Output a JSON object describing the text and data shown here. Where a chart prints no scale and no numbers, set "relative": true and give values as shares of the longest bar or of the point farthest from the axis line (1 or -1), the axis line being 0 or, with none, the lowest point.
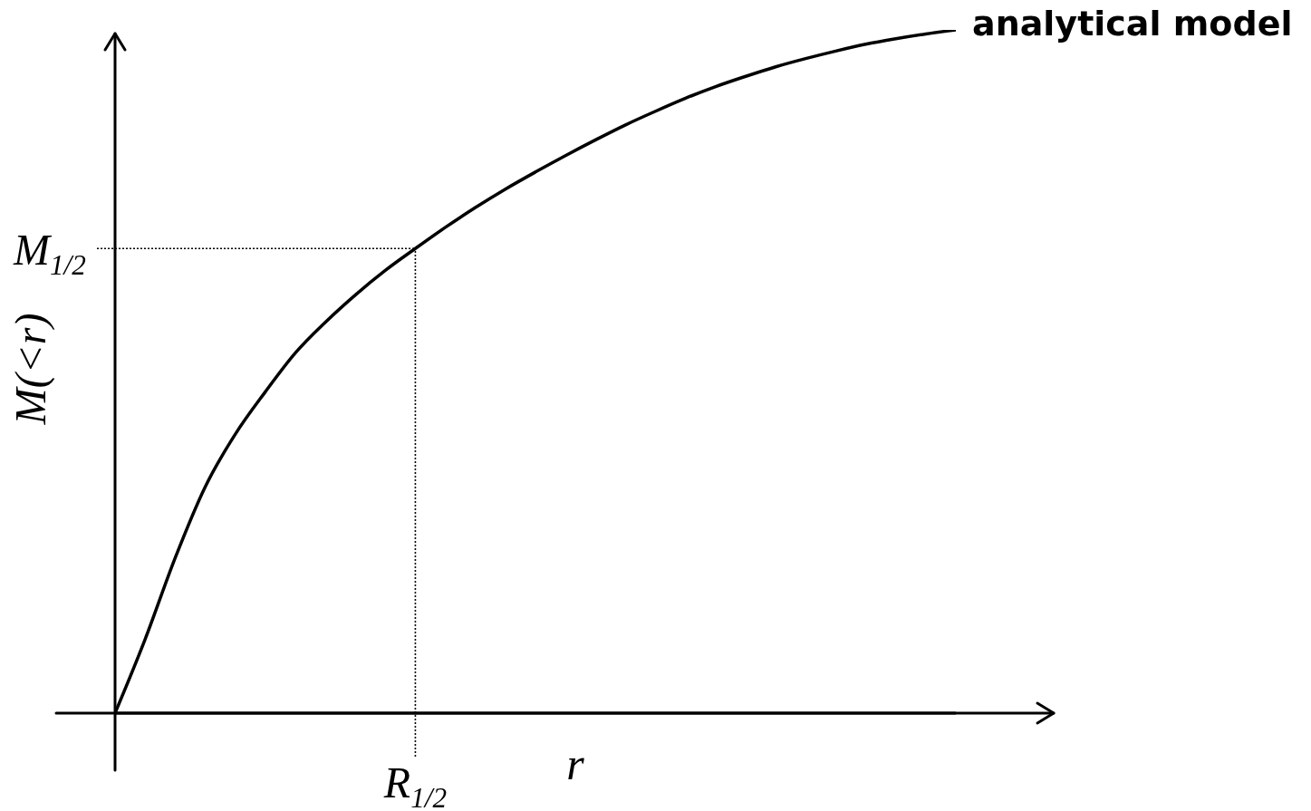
{
  "chart_data": {
    "type": "line",
    "xlabel": "r",
    "ylabel": "M(<r)",
    "relative": true,
    "marker": "none",
    "categories": [
      null,
      null,
      null,
      null,
      null,
      null,
      null,
      null,
      null,
      null,
      null,
      null,
      null,
      null,
      null,
      null,
      null,
      null,
      null,
      null,
      null,
      null,
      null,
      null,
      null,
      null,
      null,
      null,
      null
    ],
    "series": [
      {
        "name": "analytical model",
        "color": "#000000",
        "values": [
          0,
          0.108,
          0.227,
          0.331,
          0.408,
          0.47,
          0.527,
          0.572,
          0.612,
          0.648,
          0.68,
          0.711,
          0.74,
          0.767,
          0.792,
          0.816,
          0.839,
          0.861,
          0.881,
          0.9,
          0.917,
          0.932,
          0.946,
          0.958,
          0.969,
          0.979,
          0.987,
          0.994,
          1
        ]
      }
    ],
    "ref_lines": [
      {
        "axis": "x",
        "value": "R$_{1/2}$",
        "line_style": "dotted",
        "color": "#000000"
      },
      {
        "axis": "y",
        "value": 0.68,
        "label": "M$_{1/2}$",
        "line_style": "dotted",
        "color": "#000000"
      }
    ]
  }
}
